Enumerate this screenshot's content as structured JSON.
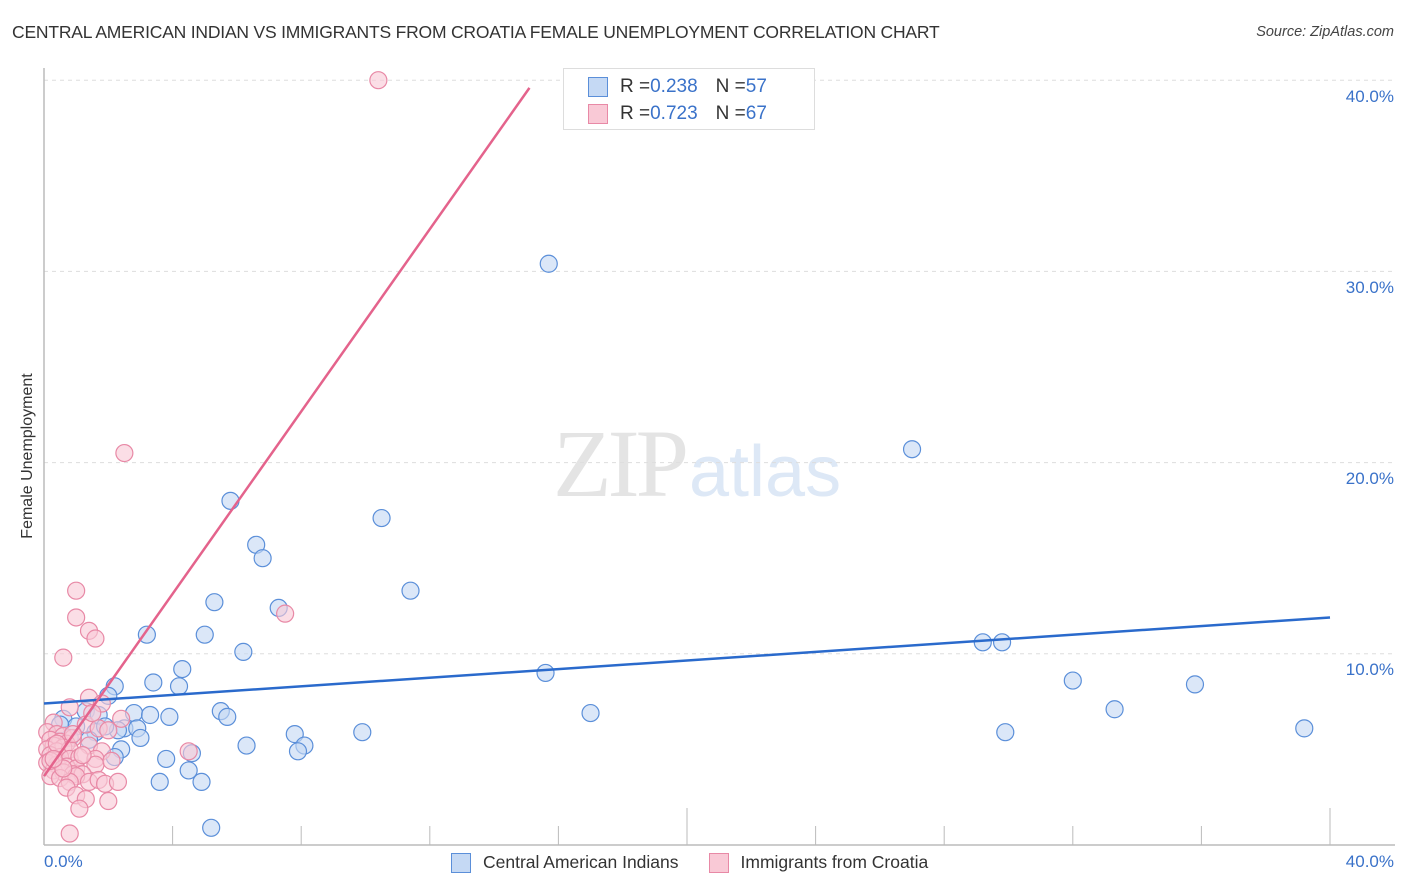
{
  "header": {
    "title": "CENTRAL AMERICAN INDIAN VS IMMIGRANTS FROM CROATIA FEMALE UNEMPLOYMENT CORRELATION CHART",
    "source": "Source: ZipAtlas.com"
  },
  "watermark": {
    "zip": "ZIP",
    "atlas": "atlas"
  },
  "colors": {
    "blue_fill": "#c5d9f4",
    "blue_stroke": "#5b8fd9",
    "blue_line": "#2a6acc",
    "pink_fill": "#f9c9d6",
    "pink_stroke": "#e889a6",
    "pink_line": "#e4638c",
    "accent_text": "#3a72c9",
    "grid": "#dddddd",
    "axis": "#bbbbbb"
  },
  "legend_top": {
    "rows": [
      {
        "r_label": "R = ",
        "r_value": "0.238",
        "n_label": "N = ",
        "n_value": "57"
      },
      {
        "r_label": "R = ",
        "r_value": "0.723",
        "n_label": "N = ",
        "n_value": "67"
      }
    ]
  },
  "legend_bottom": {
    "items": [
      {
        "label": "Central American Indians"
      },
      {
        "label": "Immigrants from Croatia"
      }
    ]
  },
  "axes": {
    "y_label": "Female Unemployment",
    "y_ticks": [
      "40.0%",
      "30.0%",
      "20.0%",
      "10.0%"
    ],
    "x_tick_left": "0.0%",
    "x_tick_right": "40.0%"
  },
  "chart_data": {
    "type": "scatter",
    "title": "CENTRAL AMERICAN INDIAN VS IMMIGRANTS FROM CROATIA FEMALE UNEMPLOYMENT CORRELATION CHART",
    "xlabel": "",
    "ylabel": "Female Unemployment",
    "xlim": [
      0,
      40
    ],
    "ylim": [
      0,
      41
    ],
    "x_ticks": [
      "0.0%",
      "40.0%"
    ],
    "y_ticks": [
      "10.0%",
      "20.0%",
      "30.0%",
      "40.0%"
    ],
    "grid": "horizontal dashed",
    "legend_position": "bottom",
    "series": [
      {
        "name": "Central American Indians",
        "R": 0.238,
        "N": 57,
        "trend": {
          "x0": 0,
          "y0": 7.4,
          "x1": 40,
          "y1": 11.9
        },
        "points": [
          [
            15.7,
            30.4
          ],
          [
            27.0,
            20.7
          ],
          [
            5.8,
            18.0
          ],
          [
            10.5,
            17.1
          ],
          [
            6.6,
            15.7
          ],
          [
            6.8,
            15.0
          ],
          [
            11.4,
            13.3
          ],
          [
            5.3,
            12.7
          ],
          [
            7.3,
            12.4
          ],
          [
            3.2,
            11.0
          ],
          [
            5.0,
            11.0
          ],
          [
            29.2,
            10.6
          ],
          [
            29.8,
            10.6
          ],
          [
            6.2,
            10.1
          ],
          [
            4.3,
            9.2
          ],
          [
            15.6,
            9.0
          ],
          [
            3.4,
            8.5
          ],
          [
            4.2,
            8.3
          ],
          [
            2.2,
            8.3
          ],
          [
            32.0,
            8.6
          ],
          [
            35.8,
            8.4
          ],
          [
            1.3,
            7.0
          ],
          [
            2.0,
            7.8
          ],
          [
            2.8,
            6.9
          ],
          [
            3.3,
            6.8
          ],
          [
            3.9,
            6.7
          ],
          [
            5.5,
            7.0
          ],
          [
            5.7,
            6.7
          ],
          [
            17.0,
            6.9
          ],
          [
            33.3,
            7.1
          ],
          [
            0.6,
            6.6
          ],
          [
            1.0,
            6.2
          ],
          [
            1.7,
            6.8
          ],
          [
            2.5,
            6.1
          ],
          [
            2.9,
            6.1
          ],
          [
            7.8,
            5.8
          ],
          [
            9.9,
            5.9
          ],
          [
            29.9,
            5.9
          ],
          [
            39.2,
            6.1
          ],
          [
            2.3,
            6.0
          ],
          [
            1.6,
            5.9
          ],
          [
            3.0,
            5.6
          ],
          [
            2.4,
            5.0
          ],
          [
            6.3,
            5.2
          ],
          [
            8.1,
            5.2
          ],
          [
            7.9,
            4.9
          ],
          [
            4.6,
            4.8
          ],
          [
            2.2,
            4.6
          ],
          [
            3.8,
            4.5
          ],
          [
            4.5,
            3.9
          ],
          [
            3.6,
            3.3
          ],
          [
            4.9,
            3.3
          ],
          [
            5.2,
            0.9
          ],
          [
            0.5,
            6.3
          ],
          [
            0.8,
            5.6
          ],
          [
            1.4,
            5.5
          ],
          [
            1.9,
            6.2
          ]
        ]
      },
      {
        "name": "Immigrants from Croatia",
        "R": 0.723,
        "N": 67,
        "trend": {
          "x0": 0,
          "y0": 3.6,
          "x1": 15.1,
          "y1": 39.6
        },
        "points": [
          [
            10.4,
            40.0
          ],
          [
            2.5,
            20.5
          ],
          [
            7.5,
            12.1
          ],
          [
            1.0,
            13.3
          ],
          [
            1.0,
            11.9
          ],
          [
            1.4,
            11.2
          ],
          [
            1.6,
            10.8
          ],
          [
            0.6,
            9.8
          ],
          [
            1.4,
            7.7
          ],
          [
            1.8,
            7.4
          ],
          [
            0.8,
            7.2
          ],
          [
            2.4,
            6.6
          ],
          [
            1.3,
            6.3
          ],
          [
            0.3,
            6.4
          ],
          [
            1.7,
            6.1
          ],
          [
            2.0,
            6.0
          ],
          [
            0.1,
            5.9
          ],
          [
            0.4,
            5.8
          ],
          [
            0.6,
            5.7
          ],
          [
            0.9,
            5.6
          ],
          [
            0.2,
            5.5
          ],
          [
            0.5,
            5.4
          ],
          [
            0.7,
            5.3
          ],
          [
            0.3,
            5.2
          ],
          [
            0.6,
            5.1
          ],
          [
            0.1,
            5.0
          ],
          [
            0.4,
            4.9
          ],
          [
            0.8,
            5.0
          ],
          [
            1.4,
            5.2
          ],
          [
            1.8,
            4.9
          ],
          [
            4.5,
            4.9
          ],
          [
            0.2,
            4.7
          ],
          [
            0.5,
            4.6
          ],
          [
            0.8,
            4.5
          ],
          [
            1.1,
            4.6
          ],
          [
            1.6,
            4.5
          ],
          [
            0.1,
            4.3
          ],
          [
            0.4,
            4.2
          ],
          [
            0.7,
            4.1
          ],
          [
            1.0,
            4.0
          ],
          [
            1.6,
            4.2
          ],
          [
            2.1,
            4.4
          ],
          [
            0.3,
            3.9
          ],
          [
            0.6,
            3.8
          ],
          [
            0.9,
            3.7
          ],
          [
            1.2,
            3.7
          ],
          [
            0.2,
            3.6
          ],
          [
            0.5,
            3.5
          ],
          [
            1.0,
            3.6
          ],
          [
            1.4,
            3.3
          ],
          [
            1.7,
            3.4
          ],
          [
            1.9,
            3.2
          ],
          [
            0.8,
            3.3
          ],
          [
            0.7,
            3.0
          ],
          [
            1.0,
            2.6
          ],
          [
            1.3,
            2.4
          ],
          [
            2.0,
            2.3
          ],
          [
            1.1,
            1.9
          ],
          [
            0.8,
            0.6
          ],
          [
            2.3,
            3.3
          ],
          [
            0.2,
            4.4
          ],
          [
            0.4,
            5.3
          ],
          [
            0.6,
            4.0
          ],
          [
            1.2,
            4.7
          ],
          [
            0.3,
            4.5
          ],
          [
            0.9,
            5.8
          ],
          [
            1.5,
            6.9
          ]
        ]
      }
    ]
  }
}
